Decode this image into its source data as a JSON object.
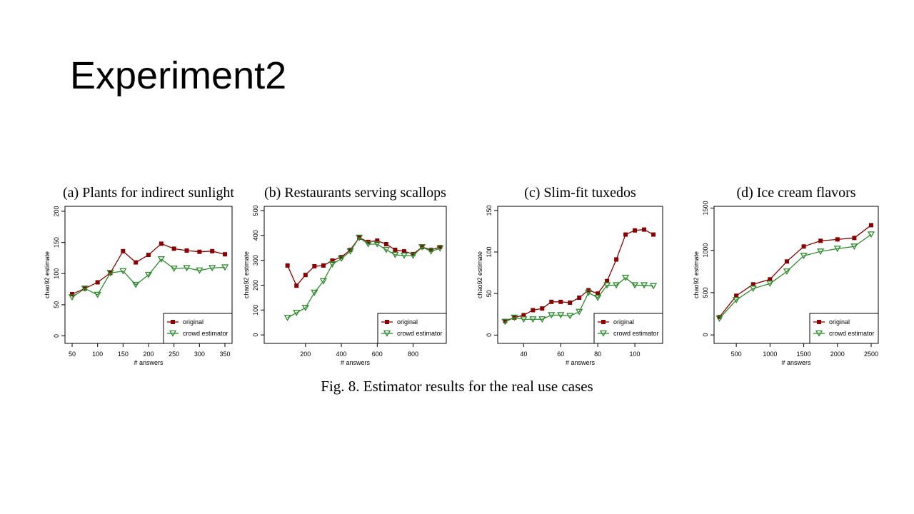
{
  "slide": {
    "title": "Experiment2"
  },
  "figure": {
    "caption": "Fig. 8.   Estimator results for the real use cases"
  },
  "chart_data": [
    {
      "type": "line",
      "title": "(a) Plants for indirect sunlight",
      "xlabel": "# answers",
      "ylabel": "chao92 estimate",
      "x": [
        50,
        75,
        100,
        125,
        150,
        175,
        200,
        225,
        250,
        275,
        300,
        325,
        350
      ],
      "series": [
        {
          "name": "original",
          "color": "#8b0000",
          "marker": "square",
          "values": [
            67,
            76,
            86,
            101,
            136,
            118,
            130,
            148,
            140,
            137,
            135,
            136,
            131
          ]
        },
        {
          "name": "crowd estimator",
          "color": "#2e8b2e",
          "marker": "triangle-down",
          "values": [
            62,
            76,
            66,
            101,
            104,
            82,
            98,
            123,
            108,
            109,
            105,
            109,
            110
          ]
        }
      ],
      "xlim": [
        36,
        364
      ],
      "ylim": [
        -12,
        208
      ],
      "xticks": [
        50,
        100,
        150,
        200,
        250,
        300,
        350
      ],
      "yticks": [
        0,
        50,
        100,
        150,
        200
      ],
      "legend": "lower right"
    },
    {
      "type": "line",
      "title": "(b) Restaurants serving scallops",
      "xlabel": "# answers",
      "ylabel": "chao92 estimate",
      "x": [
        100,
        150,
        200,
        250,
        300,
        350,
        400,
        450,
        500,
        550,
        600,
        650,
        700,
        750,
        800,
        850,
        900,
        950
      ],
      "series": [
        {
          "name": "original",
          "color": "#8b0000",
          "marker": "square",
          "values": [
            279,
            198,
            241,
            276,
            279,
            299,
            313,
            342,
            391,
            374,
            379,
            365,
            342,
            336,
            325,
            353,
            342,
            353
          ]
        },
        {
          "name": "crowd estimator",
          "color": "#2e8b2e",
          "marker": "triangle-down",
          "values": [
            69,
            89,
            109,
            170,
            216,
            284,
            307,
            336,
            391,
            365,
            365,
            342,
            322,
            319,
            319,
            353,
            336,
            348
          ]
        }
      ],
      "xlim": [
        -30,
        985
      ],
      "ylim": [
        -34,
        517
      ],
      "xticks": [
        200,
        400,
        600,
        800
      ],
      "yticks": [
        0,
        100,
        200,
        300,
        400,
        500
      ],
      "legend": "lower right"
    },
    {
      "type": "line",
      "title": "(c) Slim-fit tuxedos",
      "xlabel": "# answers",
      "ylabel": "chao92 estimate",
      "x": [
        30,
        35,
        40,
        45,
        50,
        55,
        60,
        65,
        70,
        75,
        80,
        85,
        90,
        95,
        100,
        105,
        110
      ],
      "series": [
        {
          "name": "original",
          "color": "#8b0000",
          "marker": "square",
          "values": [
            17,
            21,
            24,
            30,
            32,
            40,
            40,
            39,
            45,
            54,
            50,
            65,
            91,
            121,
            126,
            127,
            121
          ]
        },
        {
          "name": "crowd estimator",
          "color": "#2e8b2e",
          "marker": "triangle-down",
          "values": [
            16,
            21,
            19,
            19,
            19,
            24,
            24,
            23,
            28,
            51,
            45,
            60,
            60,
            69,
            60,
            60,
            59
          ]
        }
      ],
      "xlim": [
        26,
        115
      ],
      "ylim": [
        -10,
        155
      ],
      "xticks": [
        40,
        60,
        80,
        100
      ],
      "yticks": [
        0,
        50,
        100,
        150
      ],
      "legend": "lower right"
    },
    {
      "type": "line",
      "title": "(d) Ice cream flavors",
      "xlabel": "# answers",
      "ylabel": "chao92 estimate",
      "x": [
        250,
        500,
        750,
        1000,
        1250,
        1500,
        1750,
        2000,
        2250,
        2500
      ],
      "series": [
        {
          "name": "original",
          "color": "#8b0000",
          "marker": "square",
          "values": [
            211,
            463,
            598,
            657,
            868,
            1045,
            1112,
            1129,
            1146,
            1297
          ]
        },
        {
          "name": "crowd estimator",
          "color": "#2e8b2e",
          "marker": "triangle-down",
          "values": [
            194,
            413,
            548,
            607,
            750,
            935,
            986,
            1019,
            1045,
            1188
          ]
        }
      ],
      "xlim": [
        170,
        2606
      ],
      "ylim": [
        -100,
        1520
      ],
      "xticks": [
        500,
        1000,
        1500,
        2000,
        2500
      ],
      "yticks": [
        0,
        500,
        1000,
        1500
      ],
      "legend": "lower right"
    }
  ]
}
